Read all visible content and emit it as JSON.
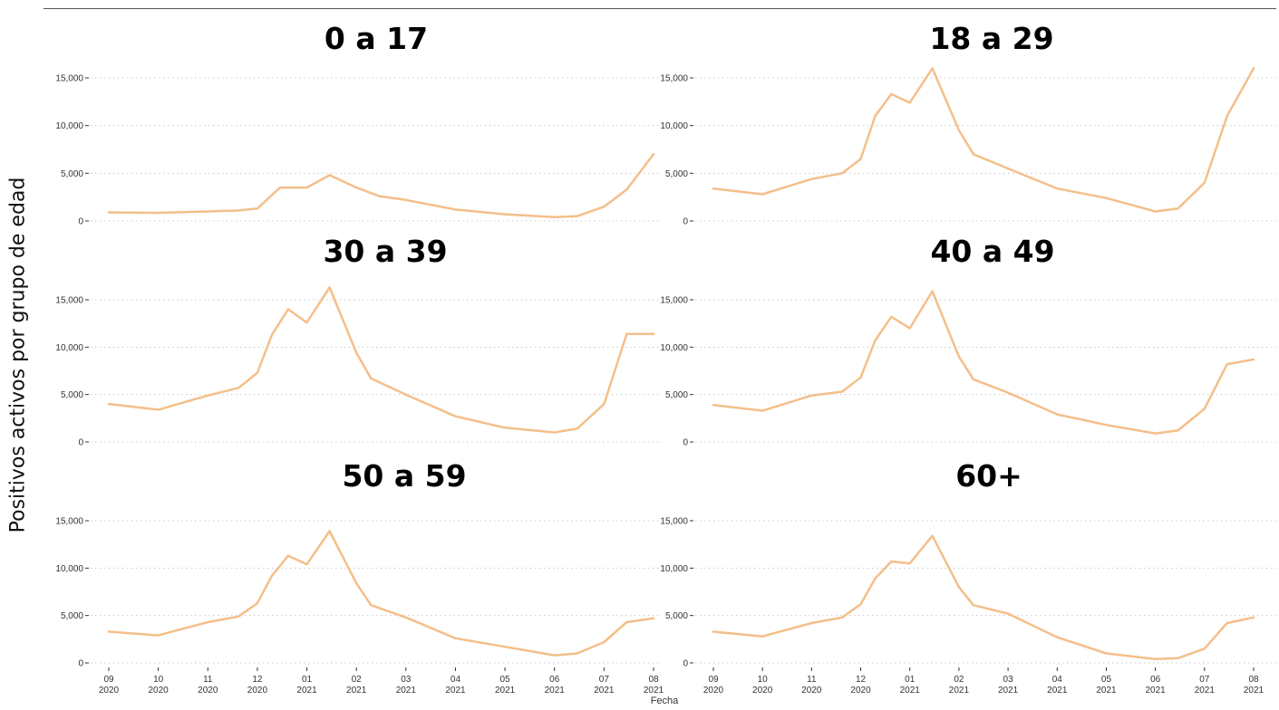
{
  "chart_data": {
    "type": "line",
    "ylabel": "Positivos activos por grupo de edad",
    "xlabel": "Fecha",
    "y_ticks": [
      {
        "value": 0,
        "label": "0"
      },
      {
        "value": 5000,
        "label": "5,000"
      },
      {
        "value": 10000,
        "label": "10,000"
      },
      {
        "value": 15000,
        "label": "15,000"
      }
    ],
    "ylim": [
      0,
      15000
    ],
    "x_ticks": [
      {
        "month": "09",
        "year": "2020"
      },
      {
        "month": "10",
        "year": "2020"
      },
      {
        "month": "11",
        "year": "2020"
      },
      {
        "month": "12",
        "year": "2020"
      },
      {
        "month": "01",
        "year": "2021"
      },
      {
        "month": "02",
        "year": "2021"
      },
      {
        "month": "03",
        "year": "2021"
      },
      {
        "month": "04",
        "year": "2021"
      },
      {
        "month": "05",
        "year": "2021"
      },
      {
        "month": "06",
        "year": "2021"
      },
      {
        "month": "07",
        "year": "2021"
      },
      {
        "month": "08",
        "year": "2021"
      }
    ],
    "xlim": [
      "2020-09",
      "2021-08"
    ],
    "grid": "horizontal dotted",
    "line_color": "#f4bf8a",
    "panels": [
      {
        "title": "0 a 17",
        "x": [
          "2020-09",
          "2020-10",
          "2020-11",
          "2020-11-20",
          "2020-12",
          "2020-12-15",
          "2021-01",
          "2021-01-15",
          "2021-02",
          "2021-02-15",
          "2021-03",
          "2021-04",
          "2021-05",
          "2021-06",
          "2021-06-15",
          "2021-07",
          "2021-07-15",
          "2021-08"
        ],
        "y": [
          900,
          850,
          1000,
          1100,
          1300,
          3500,
          3500,
          4800,
          3500,
          2600,
          2200,
          1200,
          700,
          400,
          500,
          1500,
          3300,
          7000
        ]
      },
      {
        "title": "18 a 29",
        "x": [
          "2020-09",
          "2020-10",
          "2020-11",
          "2020-11-20",
          "2020-12",
          "2020-12-10",
          "2020-12-20",
          "2021-01",
          "2021-01-15",
          "2021-02",
          "2021-02-10",
          "2021-03",
          "2021-04",
          "2021-05",
          "2021-06",
          "2021-06-15",
          "2021-07",
          "2021-07-15",
          "2021-08"
        ],
        "y": [
          3400,
          2800,
          4400,
          5000,
          6500,
          11000,
          13300,
          12400,
          16000,
          9500,
          7000,
          5500,
          3400,
          2400,
          1000,
          1300,
          4000,
          11000,
          16000
        ]
      },
      {
        "title": "30 a 39",
        "x": [
          "2020-09",
          "2020-10",
          "2020-11",
          "2020-11-20",
          "2020-12",
          "2020-12-10",
          "2020-12-20",
          "2021-01",
          "2021-01-15",
          "2021-02",
          "2021-02-10",
          "2021-03",
          "2021-04",
          "2021-05",
          "2021-06",
          "2021-06-15",
          "2021-07",
          "2021-07-15",
          "2021-08"
        ],
        "y": [
          4000,
          3400,
          4900,
          5700,
          7300,
          11300,
          14000,
          12600,
          16300,
          9400,
          6700,
          5000,
          2700,
          1500,
          1000,
          1400,
          4000,
          11400,
          11400
        ]
      },
      {
        "title": "40 a 49",
        "x": [
          "2020-09",
          "2020-10",
          "2020-11",
          "2020-11-20",
          "2020-12",
          "2020-12-10",
          "2020-12-20",
          "2021-01",
          "2021-01-15",
          "2021-02",
          "2021-02-10",
          "2021-03",
          "2021-04",
          "2021-05",
          "2021-06",
          "2021-06-15",
          "2021-07",
          "2021-07-15",
          "2021-08"
        ],
        "y": [
          3900,
          3300,
          4900,
          5300,
          6800,
          10700,
          13200,
          12000,
          15900,
          9000,
          6600,
          5200,
          2900,
          1800,
          900,
          1200,
          3500,
          8200,
          8700
        ]
      },
      {
        "title": "50 a 59",
        "x": [
          "2020-09",
          "2020-10",
          "2020-11",
          "2020-11-20",
          "2020-12",
          "2020-12-10",
          "2020-12-20",
          "2021-01",
          "2021-01-15",
          "2021-02",
          "2021-02-10",
          "2021-03",
          "2021-04",
          "2021-05",
          "2021-06",
          "2021-06-15",
          "2021-07",
          "2021-07-15",
          "2021-08"
        ],
        "y": [
          3300,
          2900,
          4300,
          4900,
          6300,
          9200,
          11300,
          10400,
          13900,
          8400,
          6100,
          4800,
          2600,
          1700,
          800,
          1000,
          2200,
          4300,
          4700
        ]
      },
      {
        "title": "60+",
        "x": [
          "2020-09",
          "2020-10",
          "2020-11",
          "2020-11-20",
          "2020-12",
          "2020-12-10",
          "2020-12-20",
          "2021-01",
          "2021-01-15",
          "2021-02",
          "2021-02-10",
          "2021-03",
          "2021-04",
          "2021-05",
          "2021-06",
          "2021-06-15",
          "2021-07",
          "2021-07-15",
          "2021-08"
        ],
        "y": [
          3300,
          2800,
          4200,
          4800,
          6200,
          8900,
          10700,
          10500,
          13400,
          8000,
          6100,
          5200,
          2700,
          1000,
          400,
          500,
          1500,
          4200,
          4800
        ]
      }
    ]
  }
}
